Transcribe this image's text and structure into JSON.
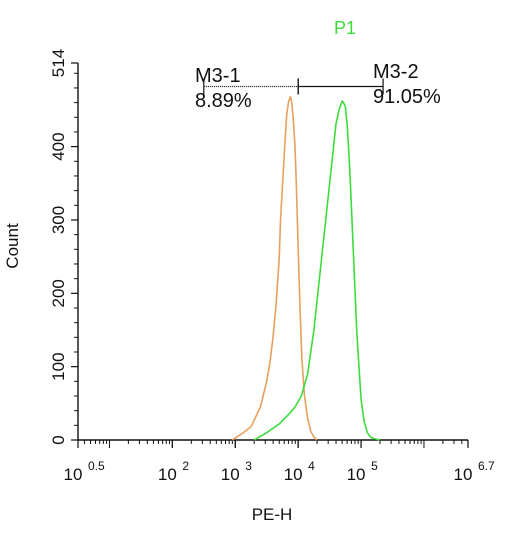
{
  "chart_data": {
    "type": "line",
    "population_label": "P1",
    "xlabel": "PE-H",
    "ylabel": "Count",
    "x_scale": "log",
    "xlim": [
      0.5,
      6.7
    ],
    "ylim": [
      0,
      514
    ],
    "x_ticks": [
      {
        "base": "10",
        "exp": "0.5",
        "value": 0.5
      },
      {
        "base": "10",
        "exp": "2",
        "value": 2
      },
      {
        "base": "10",
        "exp": "3",
        "value": 3
      },
      {
        "base": "10",
        "exp": "4",
        "value": 4
      },
      {
        "base": "10",
        "exp": "5",
        "value": 5
      },
      {
        "base": "10",
        "exp": "6.7",
        "value": 6.7
      }
    ],
    "y_ticks": [
      "0",
      "100",
      "200",
      "300",
      "400",
      "514"
    ],
    "y_tick_values": [
      0,
      100,
      200,
      300,
      400,
      514
    ],
    "colors": {
      "series_orange": "#e8a060",
      "series_green": "#3ddc3d",
      "population_label": "#3ddc3d",
      "axis": "#111111"
    },
    "series": [
      {
        "color": "#e8a060",
        "x": [
          2.95,
          3.1,
          3.25,
          3.4,
          3.5,
          3.55,
          3.6,
          3.65,
          3.7,
          3.72,
          3.75,
          3.78,
          3.8,
          3.82,
          3.85,
          3.88,
          3.9,
          3.92,
          3.95,
          3.97,
          4.0,
          4.03,
          4.06,
          4.1,
          4.15,
          4.2,
          4.25,
          4.3
        ],
        "y": [
          0,
          8,
          18,
          45,
          80,
          105,
          140,
          185,
          250,
          300,
          345,
          390,
          420,
          445,
          462,
          468,
          458,
          440,
          400,
          350,
          260,
          180,
          110,
          60,
          30,
          12,
          4,
          0
        ]
      },
      {
        "color": "#3ddc3d",
        "x": [
          3.3,
          3.5,
          3.7,
          3.85,
          3.95,
          4.05,
          4.15,
          4.25,
          4.35,
          4.45,
          4.55,
          4.6,
          4.65,
          4.7,
          4.72,
          4.75,
          4.78,
          4.8,
          4.83,
          4.86,
          4.9,
          4.93,
          4.97,
          5.0,
          5.05,
          5.1,
          5.15,
          5.2,
          5.3
        ],
        "y": [
          0,
          10,
          22,
          35,
          45,
          60,
          90,
          150,
          230,
          310,
          390,
          430,
          450,
          462,
          460,
          455,
          430,
          400,
          350,
          290,
          210,
          150,
          95,
          55,
          25,
          10,
          4,
          2,
          0
        ]
      }
    ],
    "markers": [
      {
        "name": "M3-1",
        "percent": "8.89%",
        "range": [
          2.5,
          4.0
        ]
      },
      {
        "name": "M3-2",
        "percent": "91.05%",
        "range": [
          4.0,
          5.35
        ]
      }
    ]
  }
}
